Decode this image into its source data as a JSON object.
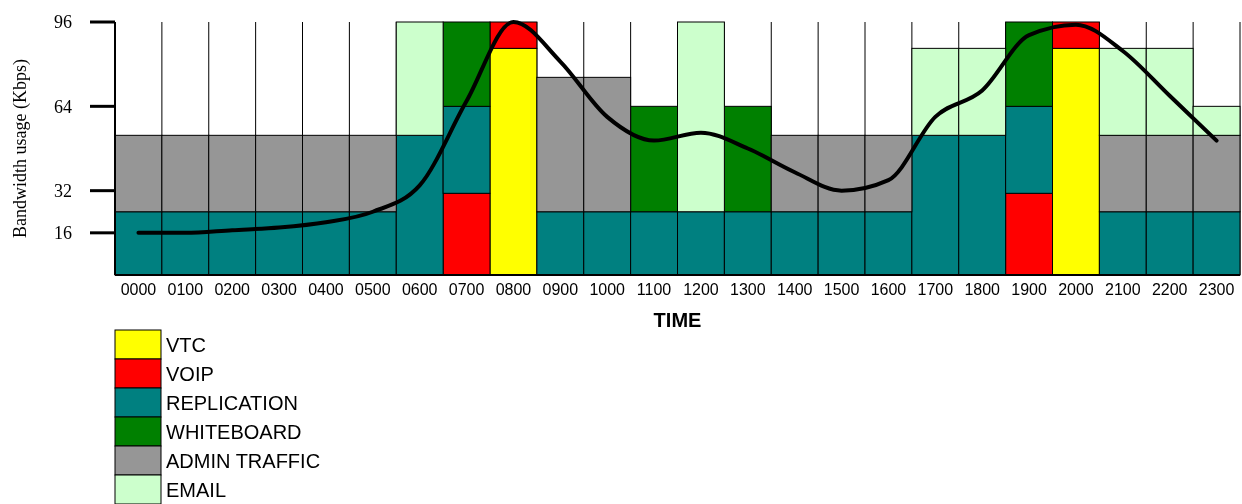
{
  "chart_data": {
    "type": "bar",
    "stacked": true,
    "xlabel": "TIME",
    "ylabel": "Bandwidth usage (Kbps)",
    "categories": [
      "0000",
      "0100",
      "0200",
      "0300",
      "0400",
      "0500",
      "0600",
      "0700",
      "0800",
      "0900",
      "1000",
      "1100",
      "1200",
      "1300",
      "1400",
      "1500",
      "1600",
      "1700",
      "1800",
      "1900",
      "2000",
      "2100",
      "2200",
      "2300"
    ],
    "ylim": [
      0,
      96
    ],
    "yticks": [
      16,
      32,
      64,
      96
    ],
    "grid": "x",
    "legend": "bottom left",
    "series": [
      {
        "name": "VTC",
        "color": "#ffff00",
        "values": [
          0,
          0,
          0,
          0,
          0,
          0,
          0,
          0,
          86,
          0,
          0,
          0,
          0,
          0,
          0,
          0,
          0,
          0,
          0,
          0,
          86,
          0,
          0,
          0
        ]
      },
      {
        "name": "VOIP",
        "color": "#ff0000",
        "values": [
          0,
          0,
          0,
          0,
          0,
          0,
          0,
          31,
          10,
          0,
          0,
          0,
          0,
          0,
          0,
          0,
          0,
          0,
          0,
          31,
          10,
          0,
          0,
          0
        ]
      },
      {
        "name": "REPLICATION",
        "color": "#008080",
        "values": [
          24,
          24,
          24,
          24,
          24,
          24,
          53,
          33,
          0,
          24,
          24,
          24,
          24,
          24,
          24,
          24,
          24,
          53,
          53,
          33,
          0,
          24,
          24,
          24
        ]
      },
      {
        "name": "WHITEBOARD",
        "color": "#008000",
        "values": [
          0,
          0,
          0,
          0,
          0,
          0,
          0,
          32,
          0,
          0,
          0,
          40,
          0,
          40,
          0,
          0,
          0,
          0,
          0,
          32,
          0,
          0,
          0,
          0
        ]
      },
      {
        "name": "ADMIN TRAFFIC",
        "color": "#969696",
        "values": [
          29,
          29,
          29,
          29,
          29,
          29,
          0,
          0,
          0,
          51,
          51,
          0,
          0,
          0,
          29,
          29,
          29,
          0,
          0,
          0,
          0,
          29,
          29,
          29
        ]
      },
      {
        "name": "EMAIL",
        "color": "#ccffcc",
        "values": [
          0,
          0,
          0,
          0,
          0,
          0,
          43,
          0,
          0,
          0,
          0,
          0,
          72,
          0,
          0,
          0,
          0,
          33,
          33,
          0,
          0,
          33,
          33,
          11
        ]
      },
      {
        "type": "line",
        "color": "#000000",
        "values": [
          16,
          16,
          17,
          18,
          20,
          24,
          34,
          66,
          96,
          81,
          60,
          51,
          54,
          48,
          39,
          32,
          36,
          60,
          70,
          91,
          95,
          85,
          68,
          51
        ]
      }
    ]
  }
}
